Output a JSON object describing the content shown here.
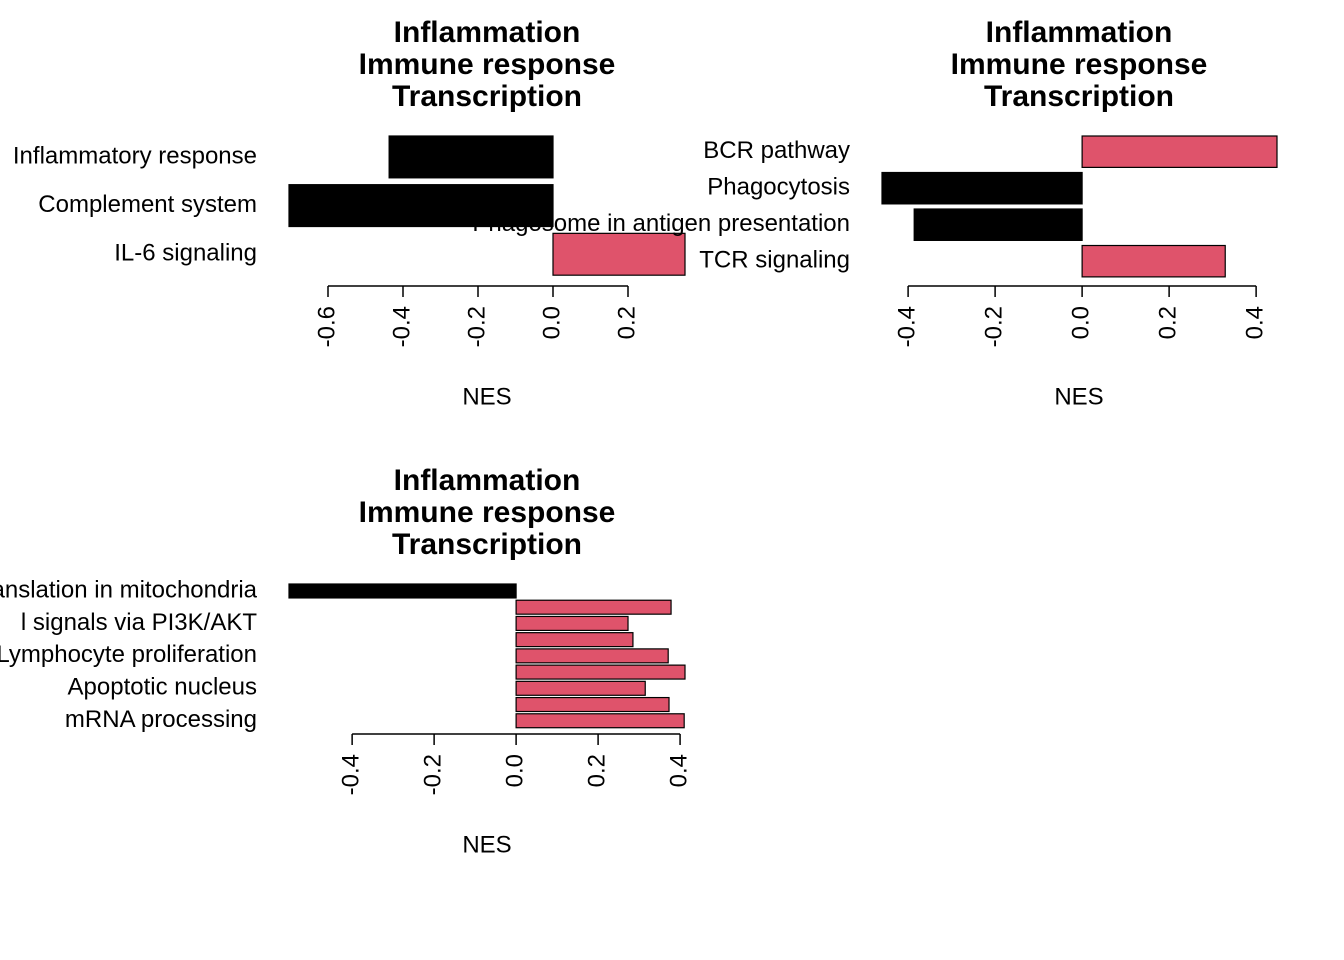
{
  "chart_data": [
    {
      "type": "bar",
      "orientation": "horizontal",
      "title": [
        "Inflammation",
        "Immune response",
        "Transcription"
      ],
      "categories": [
        "Inflammatory response",
        "Complement system",
        "IL-6 signaling"
      ],
      "values": [
        -0.437,
        -0.704,
        0.352
      ],
      "colors": [
        "#000000",
        "#000000",
        "#DF536B"
      ],
      "xlim": [
        -0.704,
        0.352
      ],
      "xticks": [
        -0.6,
        -0.4,
        -0.2,
        {
          "value": 0,
          "label": "0.0"
        },
        0.2
      ],
      "xlabel": "NES"
    },
    {
      "type": "bar",
      "orientation": "horizontal",
      "title": [
        "Inflammation",
        "Immune response",
        "Transcription"
      ],
      "categories": [
        "BCR pathway",
        "Phagocytosis",
        "Phagosome in antigen presentation",
        "TCR signaling"
      ],
      "values": [
        0.448,
        -0.46,
        -0.386,
        0.329
      ],
      "colors": [
        "#DF536B",
        "#000000",
        "#000000",
        "#DF536B"
      ],
      "xlim": [
        -0.46,
        0.448
      ],
      "xticks": [
        -0.4,
        -0.2,
        {
          "value": 0,
          "label": "0.0"
        },
        0.2,
        0.4
      ],
      "xlabel": "NES"
    },
    {
      "type": "bar",
      "orientation": "horizontal",
      "title": [
        "Inflammation",
        "Immune response",
        "Transcription"
      ],
      "categories": [
        "Translation in mitochondria",
        null,
        "l signals via PI3K/AKT",
        null,
        "Lymphocyte proliferation",
        null,
        "Apoptotic nucleus",
        null,
        "mRNA processing"
      ],
      "values": [
        -0.554,
        0.378,
        0.273,
        0.285,
        0.371,
        0.412,
        0.315,
        0.373,
        0.41
      ],
      "colors": [
        "#000000",
        "#DF536B",
        "#DF536B",
        "#DF536B",
        "#DF536B",
        "#DF536B",
        "#DF536B",
        "#DF536B",
        "#DF536B"
      ],
      "xlim": [
        -0.554,
        0.412
      ],
      "xticks": [
        -0.4,
        -0.2,
        {
          "value": 0,
          "label": "0.0"
        },
        0.2,
        0.4
      ],
      "xlabel": "NES"
    }
  ]
}
